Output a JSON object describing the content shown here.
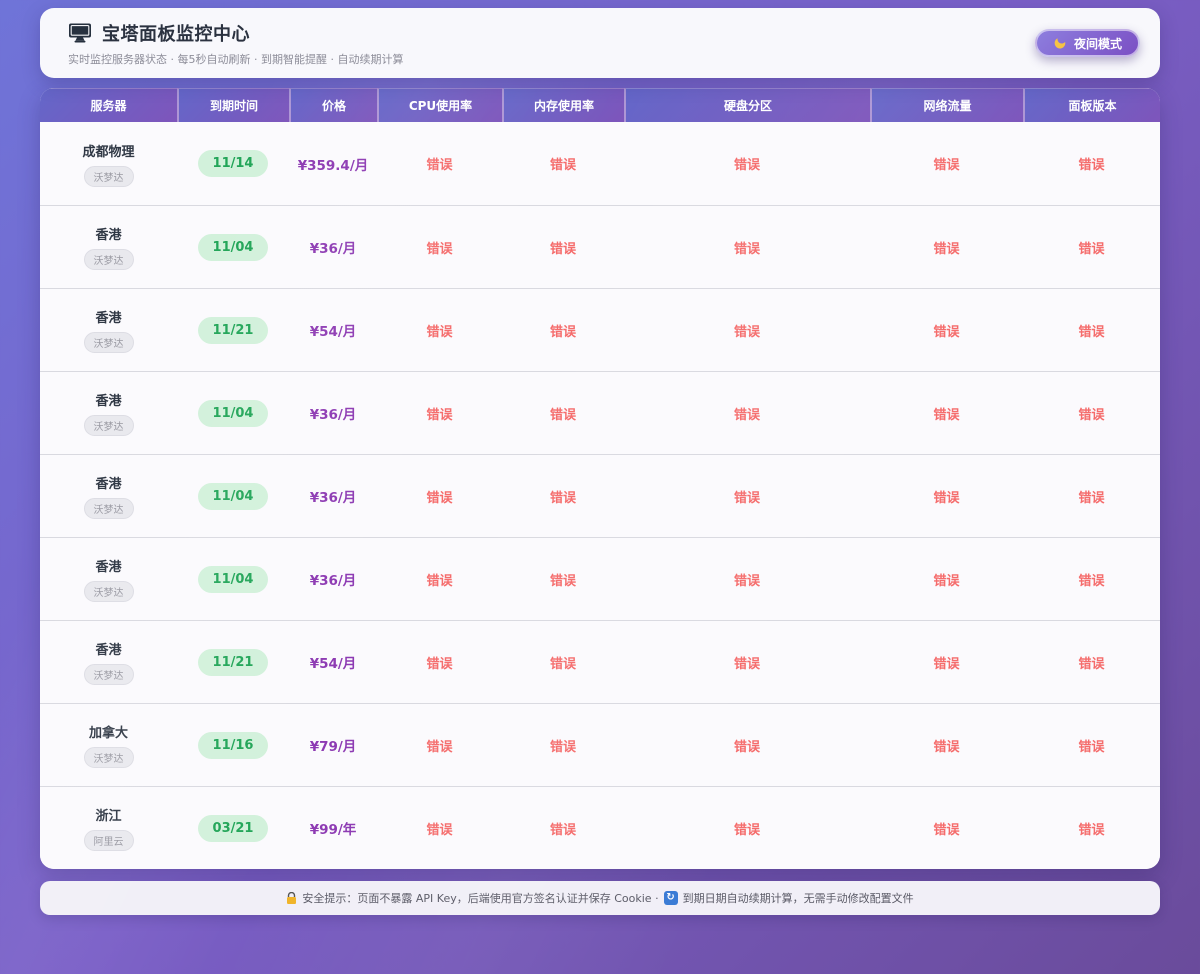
{
  "header": {
    "title": "宝塔面板监控中心",
    "subtitle": "实时监控服务器状态 · 每5秒自动刷新 · 到期智能提醒 · 自动续期计算",
    "night_mode_label": "夜间模式"
  },
  "table": {
    "columns": [
      "服务器",
      "到期时间",
      "价格",
      "CPU使用率",
      "内存使用率",
      "硬盘分区",
      "网络流量",
      "面板版本"
    ],
    "rows": [
      {
        "name": "成都物理",
        "provider": "沃梦达",
        "expiry": "11/14",
        "price": "¥359.4/月",
        "cpu": "错误",
        "memory": "错误",
        "disk": "错误",
        "network": "错误",
        "panel": "错误"
      },
      {
        "name": "香港",
        "provider": "沃梦达",
        "expiry": "11/04",
        "price": "¥36/月",
        "cpu": "错误",
        "memory": "错误",
        "disk": "错误",
        "network": "错误",
        "panel": "错误"
      },
      {
        "name": "香港",
        "provider": "沃梦达",
        "expiry": "11/21",
        "price": "¥54/月",
        "cpu": "错误",
        "memory": "错误",
        "disk": "错误",
        "network": "错误",
        "panel": "错误"
      },
      {
        "name": "香港",
        "provider": "沃梦达",
        "expiry": "11/04",
        "price": "¥36/月",
        "cpu": "错误",
        "memory": "错误",
        "disk": "错误",
        "network": "错误",
        "panel": "错误"
      },
      {
        "name": "香港",
        "provider": "沃梦达",
        "expiry": "11/04",
        "price": "¥36/月",
        "cpu": "错误",
        "memory": "错误",
        "disk": "错误",
        "network": "错误",
        "panel": "错误"
      },
      {
        "name": "香港",
        "provider": "沃梦达",
        "expiry": "11/04",
        "price": "¥36/月",
        "cpu": "错误",
        "memory": "错误",
        "disk": "错误",
        "network": "错误",
        "panel": "错误"
      },
      {
        "name": "香港",
        "provider": "沃梦达",
        "expiry": "11/21",
        "price": "¥54/月",
        "cpu": "错误",
        "memory": "错误",
        "disk": "错误",
        "network": "错误",
        "panel": "错误"
      },
      {
        "name": "加拿大",
        "provider": "沃梦达",
        "expiry": "11/16",
        "price": "¥79/月",
        "cpu": "错误",
        "memory": "错误",
        "disk": "错误",
        "network": "错误",
        "panel": "错误"
      },
      {
        "name": "浙江",
        "provider": "阿里云",
        "expiry": "03/21",
        "price": "¥99/年",
        "cpu": "错误",
        "memory": "错误",
        "disk": "错误",
        "network": "错误",
        "panel": "错误"
      }
    ]
  },
  "footer": {
    "text_part1": "安全提示：页面不暴露 API Key，后端使用官方签名认证并保存 Cookie ·",
    "text_part2": "到期日期自动续期计算，无需手动修改配置文件"
  },
  "icons": {
    "monitor": "monitor-icon",
    "moon": "moon-icon",
    "lock": "lock-icon",
    "refresh": "refresh-icon",
    "refresh_glyph": "↻"
  },
  "colors": {
    "page_gradient_start": "#6f74d8",
    "page_gradient_end": "#6a4b9b",
    "header_cell_gradient_start": "#6467c9",
    "header_cell_gradient_end": "#7e55bb",
    "success_badge_bg": "#d2f1db",
    "success_badge_text": "#22a558",
    "price_text": "#8d3ab3",
    "error_text": "#f56c6c",
    "card_bg": "#fbfafd"
  }
}
